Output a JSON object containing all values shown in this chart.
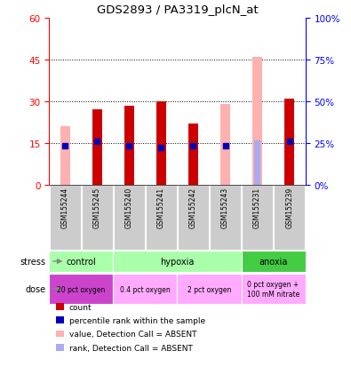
{
  "title": "GDS2893 / PA3319_plcN_at",
  "samples": [
    "GSM155244",
    "GSM155245",
    "GSM155240",
    "GSM155241",
    "GSM155242",
    "GSM155243",
    "GSM155231",
    "GSM155239"
  ],
  "count_values": [
    null,
    27,
    28.5,
    30,
    22,
    null,
    null,
    31
  ],
  "count_color": "#cc0000",
  "pink_values": [
    21,
    null,
    null,
    null,
    null,
    29,
    46,
    null
  ],
  "pink_color": "#ffb0b0",
  "rank_blue_values": [
    14,
    15.5,
    14,
    13.5,
    14,
    14,
    null,
    15.5
  ],
  "rank_blue_color": "#0000bb",
  "rank_absent_values": [
    null,
    null,
    null,
    null,
    null,
    null,
    16,
    null
  ],
  "rank_absent_color": "#aaaaee",
  "ylim_left": [
    0,
    60
  ],
  "ylim_right": [
    0,
    100
  ],
  "yticks_left": [
    0,
    15,
    30,
    45,
    60
  ],
  "yticks_right": [
    0,
    25,
    50,
    75,
    100
  ],
  "ytick_labels_left": [
    "0",
    "15",
    "30",
    "45",
    "60"
  ],
  "ytick_labels_right": [
    "0%",
    "25%",
    "50%",
    "75%",
    "100%"
  ],
  "grid_yticks": [
    15,
    30,
    45
  ],
  "stress_groups": [
    {
      "label": "control",
      "start": 0,
      "end": 2,
      "color": "#aaffaa"
    },
    {
      "label": "hypoxia",
      "start": 2,
      "end": 6,
      "color": "#aaffaa"
    },
    {
      "label": "anoxia",
      "start": 6,
      "end": 8,
      "color": "#44cc44"
    }
  ],
  "dose_groups": [
    {
      "label": "20 pct oxygen",
      "start": 0,
      "end": 2,
      "color": "#cc44cc"
    },
    {
      "label": "0.4 pct oxygen",
      "start": 2,
      "end": 4,
      "color": "#ffaaff"
    },
    {
      "label": "2 pct oxygen",
      "start": 4,
      "end": 6,
      "color": "#ffaaff"
    },
    {
      "label": "0 pct oxygen +\n100 mM nitrate",
      "start": 6,
      "end": 8,
      "color": "#ffaaff"
    }
  ],
  "legend_items": [
    {
      "color": "#cc0000",
      "label": "count"
    },
    {
      "color": "#0000bb",
      "label": "percentile rank within the sample"
    },
    {
      "color": "#ffb0b0",
      "label": "value, Detection Call = ABSENT"
    },
    {
      "color": "#aaaaee",
      "label": "rank, Detection Call = ABSENT"
    }
  ],
  "bar_width": 0.32,
  "marker_size": 5
}
